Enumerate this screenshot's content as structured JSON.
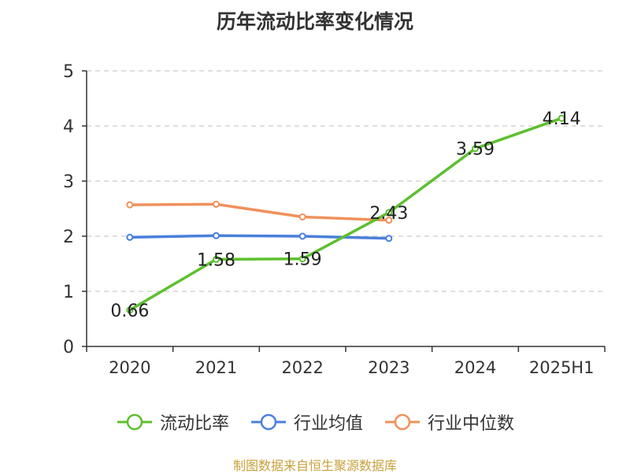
{
  "title": "历年流动比率变化情况",
  "source": "制图数据来自恒生聚源数据库",
  "chart_data": {
    "type": "line",
    "title": "历年流动比率变化情况",
    "categories": [
      "2020",
      "2021",
      "2022",
      "2023",
      "2024",
      "2025H1"
    ],
    "ylim": [
      0,
      5
    ],
    "yticks": [
      "0",
      "1",
      "2",
      "3",
      "4",
      "5"
    ],
    "grid": true,
    "legend_position": "bottom",
    "series": [
      {
        "name": "流动比率",
        "color": "#5cc02e",
        "values": [
          0.66,
          1.58,
          1.59,
          2.43,
          3.59,
          4.14
        ],
        "labels": [
          "0.66",
          "1.58",
          "1.59",
          "2.43",
          "3.59",
          "4.14"
        ]
      },
      {
        "name": "行业均值",
        "color": "#4a7fdc",
        "values": [
          1.98,
          2.01,
          2.0,
          1.96,
          null,
          null
        ]
      },
      {
        "name": "行业中位数",
        "color": "#f0915c",
        "values": [
          2.57,
          2.58,
          2.35,
          2.29,
          null,
          null
        ]
      }
    ]
  }
}
